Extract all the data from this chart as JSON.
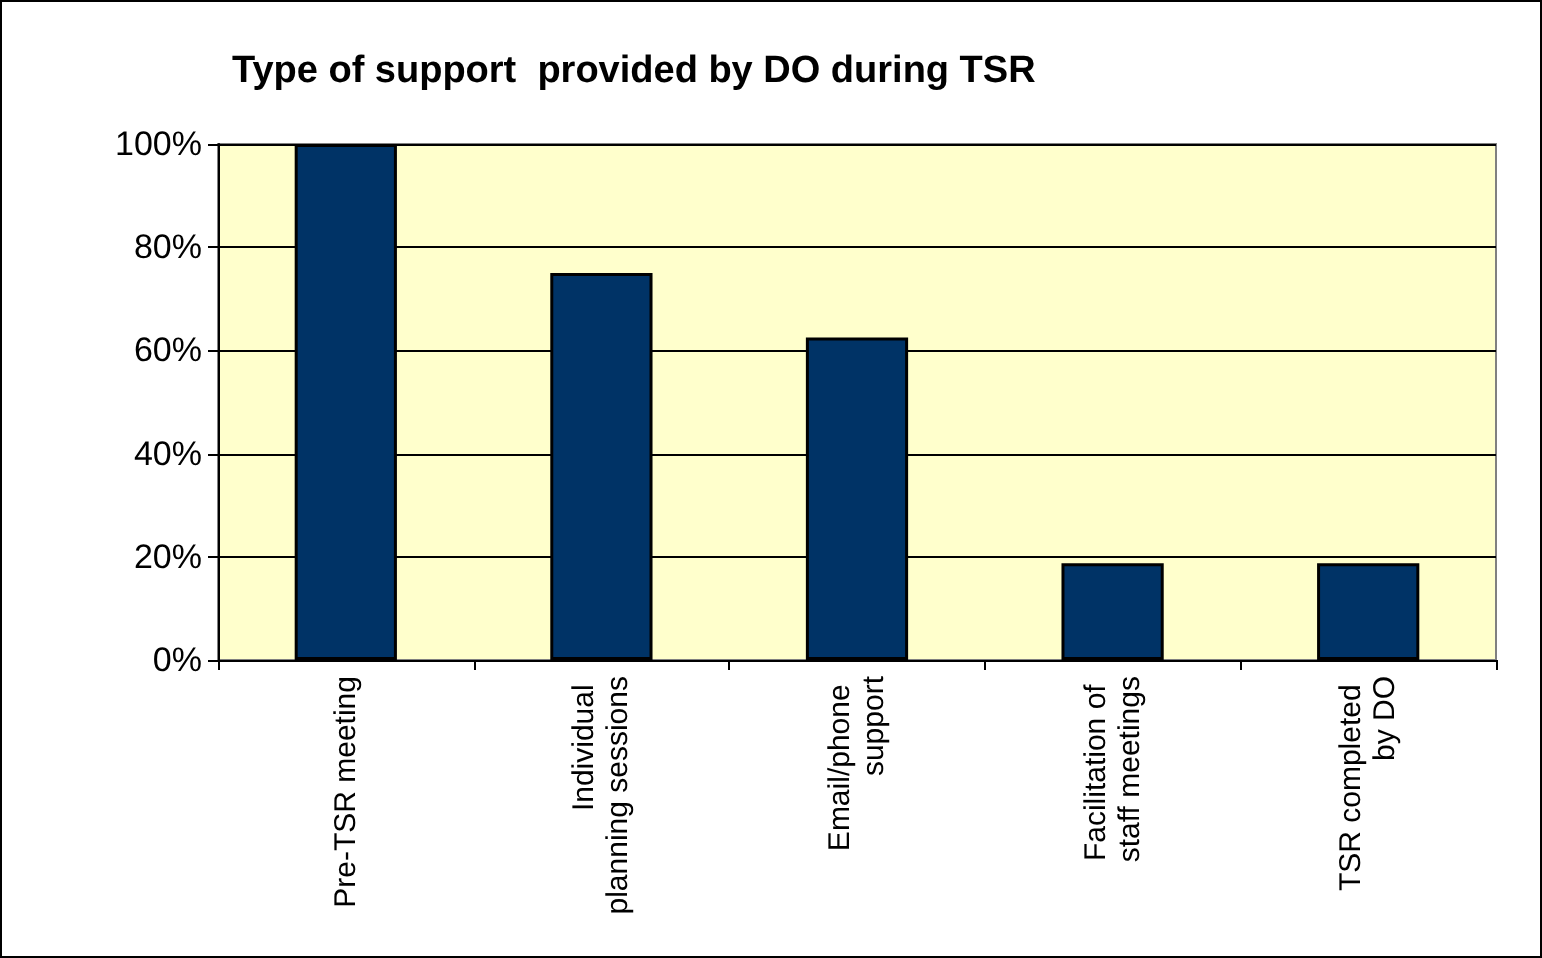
{
  "chart_data": {
    "type": "bar",
    "title": "Type of support  provided by DO during TSR",
    "categories": [
      "Pre-TSR meeting",
      "Individual planning sessions",
      "Email/phone support",
      "Facilitation of staff meetings",
      "TSR completed by DO"
    ],
    "values": [
      100,
      75,
      62.5,
      18.75,
      18.75
    ],
    "color": "#003366",
    "ylim": [
      0,
      100
    ],
    "yticks": [
      {
        "value": 0,
        "label": "0%"
      },
      {
        "value": 20,
        "label": "20%"
      },
      {
        "value": 40,
        "label": "40%"
      },
      {
        "value": 60,
        "label": "60%"
      },
      {
        "value": 80,
        "label": "80%"
      },
      {
        "value": 100,
        "label": "100%"
      }
    ],
    "grid": "y"
  }
}
